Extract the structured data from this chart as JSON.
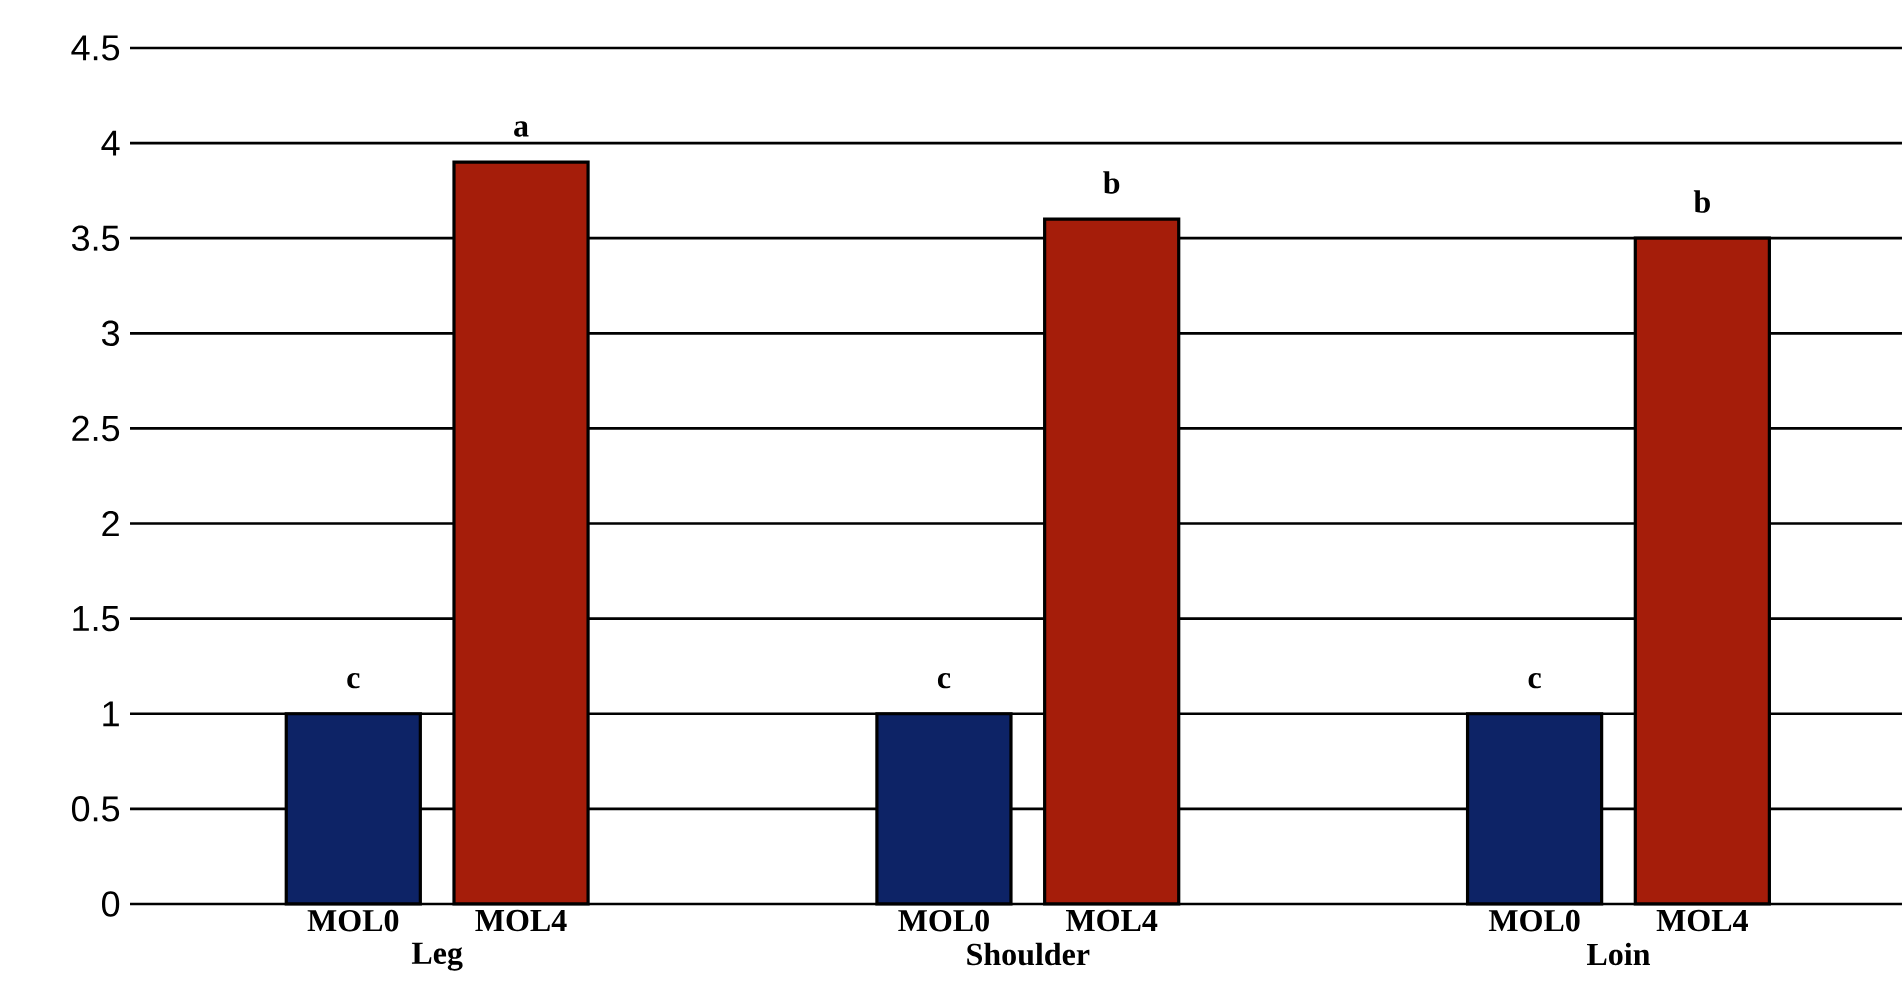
{
  "chart_data": {
    "type": "bar",
    "categories": [
      "Leg",
      "Shoulder",
      "Loin"
    ],
    "series": [
      {
        "name": "MOL0",
        "color": "#0d2366",
        "values": [
          1,
          1,
          1
        ],
        "value_labels": [
          "c",
          "c",
          "c"
        ]
      },
      {
        "name": "MOL4",
        "color": "#a51d0a",
        "values": [
          3.9,
          3.6,
          3.5
        ],
        "value_labels": [
          "a",
          "b",
          "b"
        ]
      }
    ],
    "ylim": [
      0,
      4.5
    ],
    "yticks": [
      0,
      0.5,
      1,
      1.5,
      2,
      2.5,
      3,
      3.5,
      4,
      4.5
    ],
    "grid": "y"
  }
}
